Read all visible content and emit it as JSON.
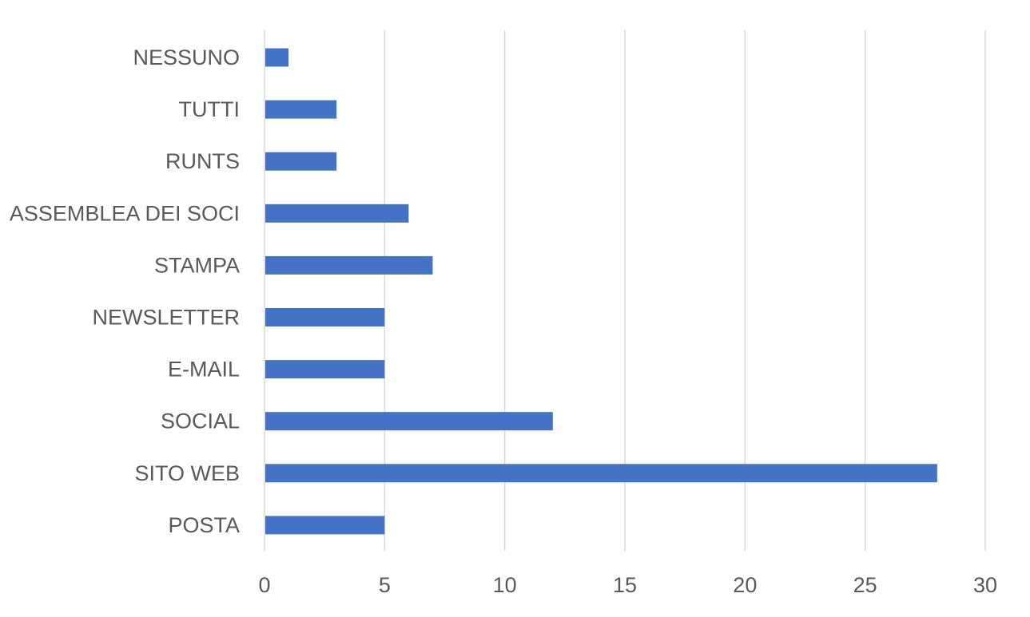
{
  "chart_data": {
    "type": "bar",
    "orientation": "horizontal",
    "categories": [
      "NESSUNO",
      "TUTTI",
      "RUNTS",
      "ASSEMBLEA DEI SOCI",
      "STAMPA",
      "NEWSLETTER",
      "E-MAIL",
      "SOCIAL",
      "SITO WEB",
      "POSTA"
    ],
    "values": [
      1,
      3,
      3,
      6,
      7,
      5,
      5,
      12,
      28,
      5
    ],
    "xlim": [
      0,
      30
    ],
    "xticks": [
      0,
      5,
      10,
      15,
      20,
      25,
      30
    ],
    "grid": "vertical",
    "legend": "none",
    "bar_color": "#4472C4",
    "title": "",
    "xlabel": "",
    "ylabel": ""
  }
}
